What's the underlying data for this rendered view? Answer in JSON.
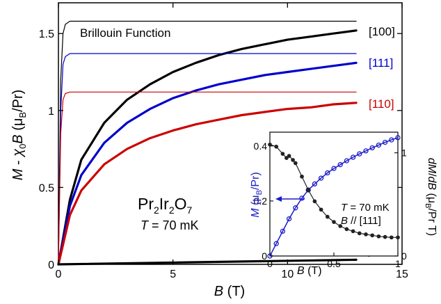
{
  "chart_data": [
    {
      "type": "line",
      "xlabel": "B (T)",
      "ylabel": "M - χ0B (μB/Pr)",
      "xlim": [
        0,
        15
      ],
      "ylim": [
        0,
        1.7
      ],
      "xticks": [
        "0",
        "5",
        "10",
        "15"
      ],
      "yticks": [
        "0",
        "0.5",
        "1",
        "1.5"
      ],
      "grid": false,
      "annotations": {
        "brillouin": "Brillouin Function",
        "compound": "Pr2Ir2O7",
        "temperature": "T = 70 mK",
        "chi_label": "χ0B"
      },
      "series": [
        {
          "name": "[100]",
          "color": "#000000",
          "x": [
            0,
            0.5,
            1,
            2,
            3,
            4,
            5,
            6,
            7,
            8,
            9,
            10,
            11,
            12,
            13
          ],
          "y": [
            0,
            0.42,
            0.68,
            0.92,
            1.07,
            1.17,
            1.25,
            1.31,
            1.36,
            1.4,
            1.43,
            1.46,
            1.48,
            1.5,
            1.52
          ]
        },
        {
          "name": "[111]",
          "color": "#0000cc",
          "x": [
            0,
            0.5,
            1,
            2,
            3,
            4,
            5,
            6,
            7,
            8,
            9,
            10,
            11,
            12,
            13
          ],
          "y": [
            0,
            0.38,
            0.58,
            0.79,
            0.92,
            1.01,
            1.08,
            1.13,
            1.17,
            1.2,
            1.23,
            1.25,
            1.27,
            1.29,
            1.31
          ]
        },
        {
          "name": "[110]",
          "color": "#cc0000",
          "x": [
            0,
            0.5,
            1,
            2,
            3,
            4,
            5,
            6,
            7,
            8,
            9,
            10,
            11,
            12,
            13
          ],
          "y": [
            0,
            0.32,
            0.48,
            0.65,
            0.75,
            0.82,
            0.87,
            0.91,
            0.94,
            0.97,
            0.99,
            1.01,
            1.02,
            1.04,
            1.05
          ]
        },
        {
          "name": "Brillouin [100]",
          "color": "#000000",
          "style": "thin",
          "x": [
            0,
            0.1,
            0.2,
            0.3,
            0.5,
            13
          ],
          "y": [
            0,
            1.2,
            1.5,
            1.56,
            1.58,
            1.58
          ]
        },
        {
          "name": "Brillouin [111]",
          "color": "#0000cc",
          "style": "thin",
          "x": [
            0,
            0.1,
            0.2,
            0.3,
            0.5,
            13
          ],
          "y": [
            0,
            1.0,
            1.3,
            1.35,
            1.37,
            1.37
          ]
        },
        {
          "name": "Brillouin [110]",
          "color": "#cc0000",
          "style": "thin",
          "x": [
            0,
            0.1,
            0.2,
            0.3,
            0.5,
            13
          ],
          "y": [
            0,
            0.85,
            1.07,
            1.11,
            1.12,
            1.12
          ]
        },
        {
          "name": "χ0B",
          "color": "#000000",
          "x": [
            0,
            13
          ],
          "y": [
            0,
            0.03
          ]
        }
      ]
    },
    {
      "type": "scatter",
      "xlabel": "B (T)",
      "ylabel_left": "M (μB/Pr)",
      "ylabel_right": "dM/dB (μB/Pr T)",
      "xlim": [
        0,
        1
      ],
      "ylim_left": [
        0,
        0.45
      ],
      "ylim_right": [
        0,
        1.2
      ],
      "xticks": [
        "0",
        "0.5",
        "1"
      ],
      "yticks_left": [
        "0",
        "0.2",
        "0.4"
      ],
      "yticks_right": [
        "0",
        "1"
      ],
      "annotations": {
        "temperature": "T = 70 mK",
        "direction": "B // [111]"
      },
      "series": [
        {
          "name": "M",
          "axis": "left",
          "color": "#1a1acc",
          "x": [
            0,
            0.05,
            0.1,
            0.15,
            0.2,
            0.25,
            0.3,
            0.35,
            0.4,
            0.45,
            0.5,
            0.55,
            0.6,
            0.65,
            0.7,
            0.75,
            0.8,
            0.85,
            0.9,
            0.95,
            1.0
          ],
          "y": [
            0,
            0.045,
            0.09,
            0.135,
            0.175,
            0.21,
            0.24,
            0.262,
            0.283,
            0.302,
            0.318,
            0.332,
            0.346,
            0.359,
            0.371,
            0.382,
            0.393,
            0.403,
            0.413,
            0.422,
            0.43
          ]
        },
        {
          "name": "dM/dB",
          "axis": "right",
          "color": "#222222",
          "x": [
            0,
            0.05,
            0.1,
            0.13,
            0.15,
            0.18,
            0.2,
            0.25,
            0.3,
            0.35,
            0.4,
            0.45,
            0.5,
            0.55,
            0.6,
            0.65,
            0.7,
            0.75,
            0.8,
            0.85,
            0.9,
            0.95,
            1.0
          ],
          "y": [
            1.08,
            1.06,
            0.99,
            0.95,
            0.97,
            0.93,
            0.9,
            0.77,
            0.64,
            0.53,
            0.45,
            0.38,
            0.33,
            0.29,
            0.26,
            0.24,
            0.22,
            0.21,
            0.2,
            0.19,
            0.185,
            0.18,
            0.18
          ]
        }
      ]
    }
  ]
}
